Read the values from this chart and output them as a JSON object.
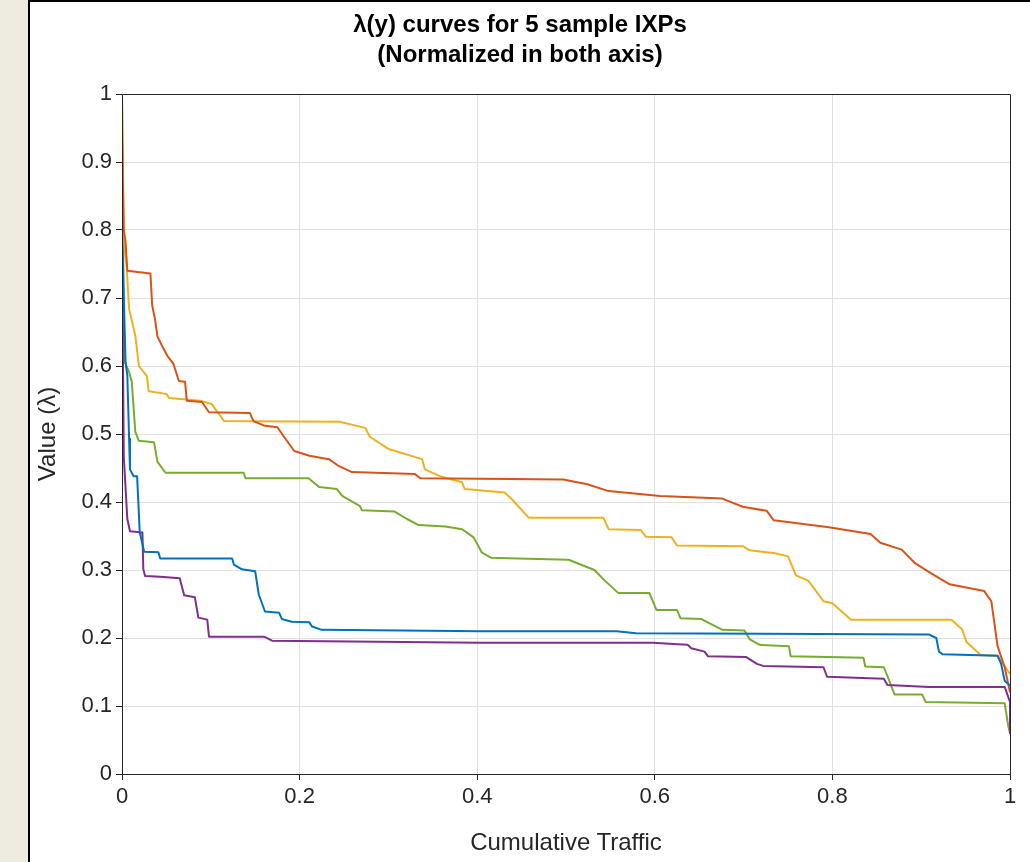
{
  "chart_data": {
    "type": "line",
    "title": "λ(y) curves for 5 sample IXPs\n(Normalized in both axis)",
    "xlabel": "Cumulative Traffic",
    "ylabel": "Value (λ)",
    "xlim": [
      0,
      1
    ],
    "xticks": [
      0,
      0.2,
      0.4,
      0.6,
      0.8,
      1
    ],
    "ylim": [
      0,
      1
    ],
    "yticks": [
      0,
      0.1,
      0.2,
      0.3,
      0.4,
      0.5,
      0.6,
      0.7,
      0.8,
      0.9,
      1
    ],
    "grid": true,
    "legend": false,
    "marker": "none",
    "line_style": "solid",
    "series": [
      {
        "color": "#0072bd",
        "x": [
          0,
          0.004,
          0.006,
          0.008,
          0.009,
          0.013,
          0.017,
          0.02,
          0.025,
          0.041,
          0.043,
          0.124,
          0.126,
          0.135,
          0.15,
          0.154,
          0.161,
          0.177,
          0.18,
          0.191,
          0.211,
          0.214,
          0.225,
          0.404,
          0.557,
          0.579,
          0.909,
          0.917,
          0.92,
          0.924,
          0.986,
          0.99,
          0.994,
          1
        ],
        "values": [
          0.8,
          0.606,
          0.586,
          0.493,
          0.448,
          0.438,
          0.438,
          0.355,
          0.327,
          0.326,
          0.317,
          0.317,
          0.308,
          0.301,
          0.298,
          0.264,
          0.239,
          0.237,
          0.228,
          0.224,
          0.223,
          0.217,
          0.212,
          0.21,
          0.21,
          0.207,
          0.205,
          0.2,
          0.18,
          0.176,
          0.174,
          0.162,
          0.137,
          0.13
        ]
      },
      {
        "color": "#d95319",
        "x": [
          0,
          0.002,
          0.004,
          0.006,
          0.032,
          0.034,
          0.037,
          0.04,
          0.045,
          0.051,
          0.058,
          0.064,
          0.071,
          0.073,
          0.09,
          0.098,
          0.144,
          0.148,
          0.161,
          0.175,
          0.184,
          0.194,
          0.211,
          0.233,
          0.244,
          0.259,
          0.33,
          0.336,
          0.497,
          0.524,
          0.548,
          0.606,
          0.676,
          0.699,
          0.726,
          0.734,
          0.796,
          0.843,
          0.854,
          0.878,
          0.893,
          0.909,
          0.932,
          0.971,
          0.979,
          0.986,
          0.994,
          1
        ],
        "values": [
          0.95,
          0.8,
          0.783,
          0.74,
          0.736,
          0.689,
          0.67,
          0.643,
          0.63,
          0.615,
          0.603,
          0.578,
          0.577,
          0.549,
          0.547,
          0.532,
          0.531,
          0.519,
          0.512,
          0.51,
          0.493,
          0.475,
          0.468,
          0.463,
          0.453,
          0.444,
          0.441,
          0.435,
          0.433,
          0.426,
          0.416,
          0.409,
          0.405,
          0.393,
          0.387,
          0.373,
          0.363,
          0.353,
          0.34,
          0.33,
          0.31,
          0.297,
          0.279,
          0.269,
          0.254,
          0.188,
          0.157,
          0.12
        ]
      },
      {
        "color": "#edb120",
        "x": [
          0,
          0.002,
          0.005,
          0.008,
          0.015,
          0.019,
          0.028,
          0.03,
          0.05,
          0.053,
          0.088,
          0.101,
          0.115,
          0.245,
          0.274,
          0.279,
          0.3,
          0.338,
          0.341,
          0.36,
          0.383,
          0.386,
          0.431,
          0.439,
          0.458,
          0.542,
          0.548,
          0.584,
          0.59,
          0.619,
          0.625,
          0.699,
          0.707,
          0.734,
          0.75,
          0.759,
          0.773,
          0.79,
          0.8,
          0.821,
          0.934,
          0.946,
          0.951,
          0.967,
          0.986,
          1
        ],
        "values": [
          1,
          0.78,
          0.75,
          0.684,
          0.645,
          0.6,
          0.585,
          0.563,
          0.559,
          0.553,
          0.549,
          0.544,
          0.519,
          0.518,
          0.509,
          0.496,
          0.478,
          0.463,
          0.448,
          0.437,
          0.429,
          0.419,
          0.414,
          0.404,
          0.377,
          0.377,
          0.36,
          0.359,
          0.349,
          0.348,
          0.336,
          0.335,
          0.329,
          0.325,
          0.32,
          0.292,
          0.284,
          0.254,
          0.251,
          0.227,
          0.227,
          0.213,
          0.194,
          0.175,
          0.174,
          0.147
        ]
      },
      {
        "color": "#7e2f8e",
        "x": [
          0,
          0.002,
          0.006,
          0.009,
          0.023,
          0.024,
          0.026,
          0.043,
          0.065,
          0.07,
          0.082,
          0.086,
          0.096,
          0.098,
          0.16,
          0.169,
          0.404,
          0.598,
          0.621,
          0.637,
          0.641,
          0.656,
          0.66,
          0.703,
          0.715,
          0.722,
          0.79,
          0.794,
          0.858,
          0.862,
          0.909,
          0.994,
          1,
          1
        ],
        "values": [
          0.78,
          0.467,
          0.375,
          0.357,
          0.355,
          0.301,
          0.291,
          0.29,
          0.288,
          0.263,
          0.26,
          0.23,
          0.227,
          0.202,
          0.202,
          0.196,
          0.193,
          0.193,
          0.191,
          0.19,
          0.185,
          0.18,
          0.173,
          0.172,
          0.162,
          0.159,
          0.157,
          0.143,
          0.14,
          0.131,
          0.128,
          0.128,
          0.106,
          0.06
        ]
      },
      {
        "color": "#77ac30",
        "x": [
          0,
          0.002,
          0.003,
          0.008,
          0.011,
          0.015,
          0.019,
          0.036,
          0.04,
          0.049,
          0.137,
          0.139,
          0.21,
          0.222,
          0.242,
          0.248,
          0.268,
          0.27,
          0.307,
          0.321,
          0.334,
          0.364,
          0.383,
          0.396,
          0.405,
          0.416,
          0.503,
          0.532,
          0.544,
          0.559,
          0.594,
          0.602,
          0.625,
          0.629,
          0.652,
          0.676,
          0.701,
          0.707,
          0.718,
          0.751,
          0.753,
          0.835,
          0.837,
          0.858,
          0.87,
          0.901,
          0.905,
          0.994,
          0.998,
          1
        ],
        "values": [
          1,
          0.65,
          0.606,
          0.591,
          0.577,
          0.503,
          0.49,
          0.488,
          0.459,
          0.443,
          0.443,
          0.435,
          0.435,
          0.422,
          0.419,
          0.409,
          0.394,
          0.388,
          0.386,
          0.375,
          0.366,
          0.364,
          0.36,
          0.348,
          0.326,
          0.318,
          0.315,
          0.3,
          0.284,
          0.266,
          0.266,
          0.241,
          0.241,
          0.229,
          0.228,
          0.212,
          0.211,
          0.198,
          0.19,
          0.188,
          0.173,
          0.171,
          0.158,
          0.157,
          0.117,
          0.117,
          0.106,
          0.104,
          0.071,
          0.06
        ]
      }
    ]
  }
}
